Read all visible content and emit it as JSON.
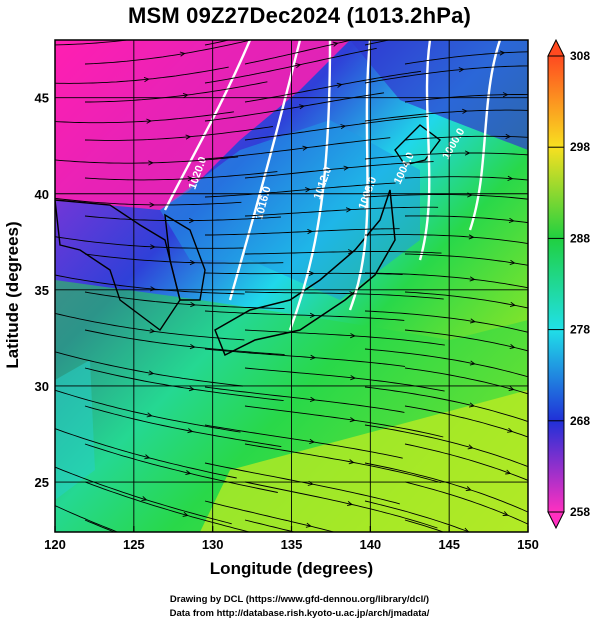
{
  "title": "MSM 09Z27Dec2024 (1013.2hPa)",
  "map": {
    "xlabel": "Longitude (degrees)",
    "ylabel": "Latitude  (degrees)",
    "lon_range": [
      120,
      150
    ],
    "lat_range": [
      22.4,
      48
    ],
    "lon_ticks": [
      "120",
      "125",
      "130",
      "135",
      "140",
      "145",
      "150"
    ],
    "lat_ticks": [
      "25",
      "30",
      "35",
      "40",
      "45"
    ],
    "isobar_labels": [
      "1020.0",
      "1016.0",
      "1012.0",
      "1008.0",
      "1004.0",
      "1000.0"
    ],
    "field": "temperature",
    "streamlines": "wind",
    "colors": {
      "magenta": "#ff1fb0",
      "blue": "#2f40d8",
      "cyan": "#1ee8ee",
      "green": "#28d84a",
      "yellow": "#e8f020"
    }
  },
  "colorbar": {
    "ticks": [
      "308",
      "298",
      "288",
      "278",
      "268",
      "258"
    ],
    "range": [
      258,
      308
    ]
  },
  "credits": {
    "line1": "Drawing by DCL (https://www.gfd-dennou.org/library/dcl/)",
    "line2": "Data from http://database.rish.kyoto-u.ac.jp/arch/jmadata/"
  }
}
